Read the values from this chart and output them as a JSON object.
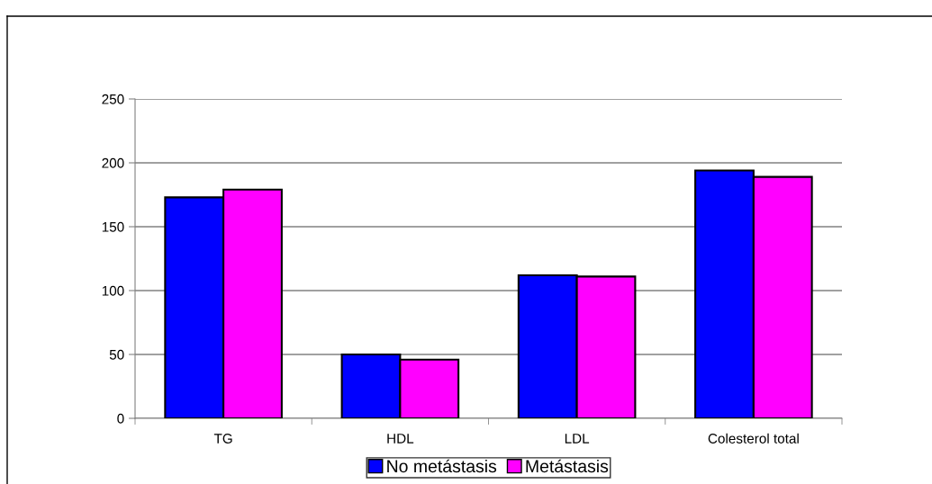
{
  "chart_data": {
    "type": "bar",
    "categories": [
      "TG",
      "HDL",
      "LDL",
      "Colesterol total"
    ],
    "series": [
      {
        "name": "No metástasis",
        "color": "#0000ff",
        "values": [
          173,
          50,
          112,
          194
        ]
      },
      {
        "name": "Metástasis",
        "color": "#ff00ff",
        "values": [
          179,
          46,
          111,
          189
        ]
      }
    ],
    "ylim": [
      0,
      250
    ],
    "yticks": [
      0,
      50,
      100,
      150,
      200,
      250
    ],
    "grid": "y",
    "legend": "bottom"
  }
}
